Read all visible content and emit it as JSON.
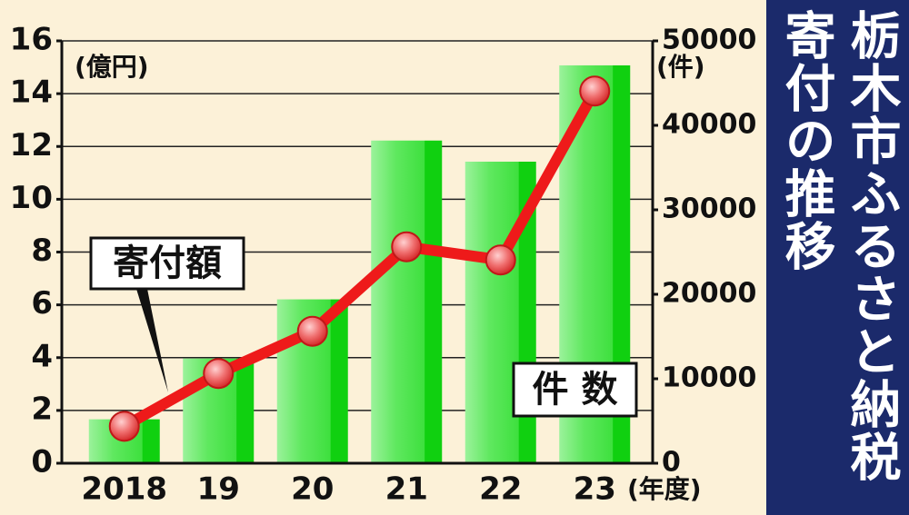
{
  "chart_data": {
    "type": "bar_line",
    "title": "栃木市ふるさと納税寄付の推移",
    "y_label": "(億円)",
    "y2_label": "(件)",
    "x_label": "(年度)",
    "categories": [
      "2018",
      "19",
      "20",
      "21",
      "22",
      "23"
    ],
    "series": [
      {
        "name": "件 数",
        "type": "bar",
        "axis": "y2",
        "color": "#22e022",
        "values": [
          5200,
          12400,
          19400,
          38200,
          35700,
          47100
        ]
      },
      {
        "name": "寄付額",
        "type": "line",
        "color": "#ee1a1a",
        "values": [
          1.4,
          3.4,
          5.0,
          8.2,
          7.7,
          14.1
        ]
      }
    ],
    "ylim": [
      0,
      16
    ],
    "yticks": [
      0,
      2,
      4,
      6,
      8,
      10,
      12,
      14,
      16
    ],
    "y2lim": [
      0,
      50000
    ],
    "y2ticks": [
      0,
      10000,
      20000,
      30000,
      40000,
      50000
    ],
    "grid": true
  }
}
